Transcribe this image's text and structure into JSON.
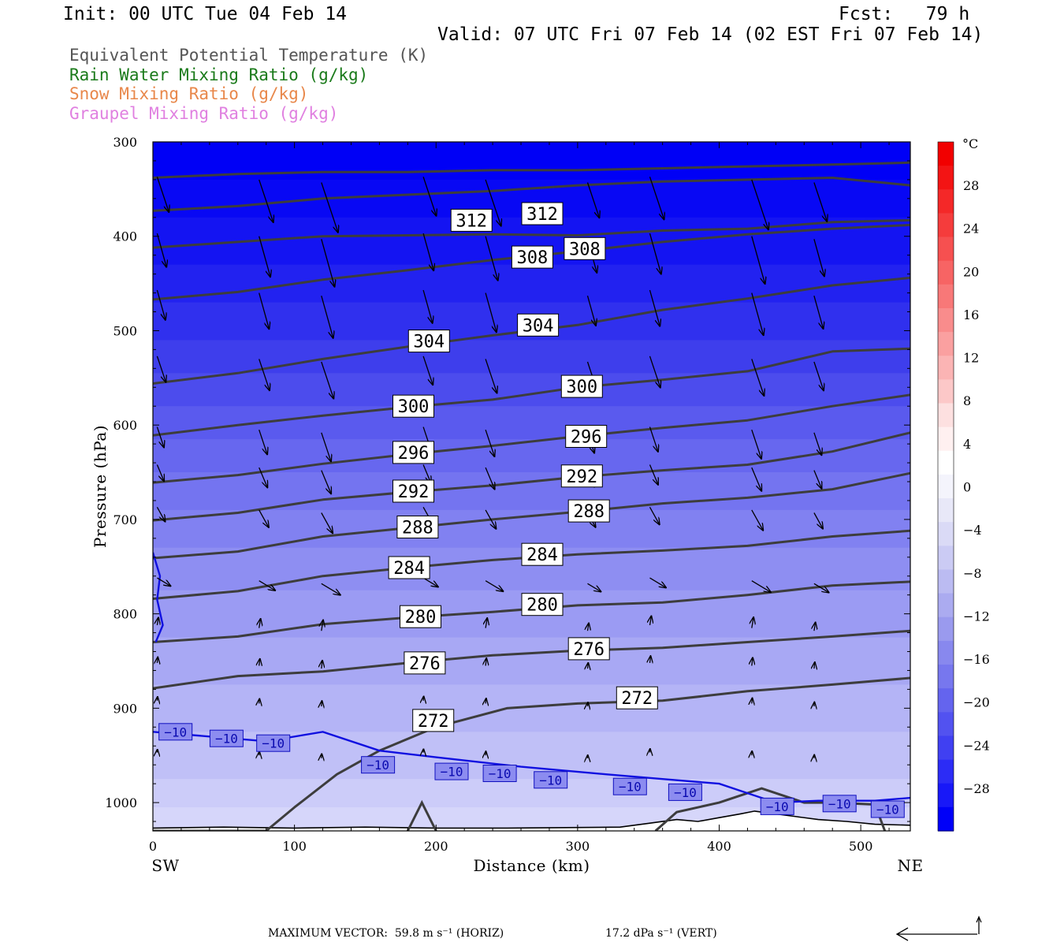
{
  "header": {
    "init": "Init: 00 UTC Tue 04 Feb 14",
    "fcst": "Fcst:   79 h",
    "valid": "Valid: 07 UTC Fri 07 Feb 14 (02 EST Fri 07 Feb 14)"
  },
  "legend": [
    {
      "label": "Equivalent Potential Temperature (K)",
      "color": "#555555"
    },
    {
      "label": "Rain Water Mixing Ratio (g/kg)",
      "color": "#1a7a1a"
    },
    {
      "label": "Snow Mixing Ratio (g/kg)",
      "color": "#e8874a"
    },
    {
      "label": "Graupel Mixing Ratio (g/kg)",
      "color": "#e080e0"
    }
  ],
  "chart_data": {
    "type": "contour",
    "xlabel": "Distance (km)",
    "ylabel": "Pressure (hPa)",
    "xlim": [
      0,
      535
    ],
    "ylim": [
      1030,
      300
    ],
    "x_ticks": [
      0,
      100,
      200,
      300,
      400,
      500
    ],
    "y_ticks": [
      300,
      400,
      500,
      600,
      700,
      800,
      900,
      1000
    ],
    "x_end_labels": {
      "left": "SW",
      "right": "NE"
    },
    "theta_e_contours": [
      {
        "value": 312,
        "labels": [
          [
            225,
            383
          ],
          [
            275,
            376
          ]
        ]
      },
      {
        "value": 308,
        "labels": [
          [
            268,
            422
          ],
          [
            305,
            413
          ]
        ]
      },
      {
        "value": 304,
        "labels": [
          [
            195,
            511
          ],
          [
            272,
            494
          ]
        ]
      },
      {
        "value": 300,
        "labels": [
          [
            184,
            580
          ],
          [
            303,
            559
          ]
        ]
      },
      {
        "value": 296,
        "labels": [
          [
            184,
            629
          ],
          [
            306,
            612
          ]
        ]
      },
      {
        "value": 292,
        "labels": [
          [
            184,
            670
          ],
          [
            303,
            654
          ]
        ]
      },
      {
        "value": 288,
        "labels": [
          [
            187,
            708
          ],
          [
            308,
            691
          ]
        ]
      },
      {
        "value": 284,
        "labels": [
          [
            181,
            751
          ],
          [
            275,
            737
          ]
        ]
      },
      {
        "value": 280,
        "labels": [
          [
            189,
            803
          ],
          [
            275,
            790
          ]
        ]
      },
      {
        "value": 276,
        "labels": [
          [
            192,
            852
          ],
          [
            308,
            837
          ]
        ]
      },
      {
        "value": 272,
        "labels": [
          [
            198,
            913
          ],
          [
            342,
            889
          ]
        ]
      }
    ],
    "temperature_contours": [
      {
        "value": -10,
        "labels": [
          [
            16,
            925
          ],
          [
            52,
            932
          ],
          [
            85,
            937
          ],
          [
            159,
            960
          ],
          [
            211,
            967
          ],
          [
            245,
            969
          ],
          [
            281,
            976
          ],
          [
            337,
            983
          ],
          [
            376,
            989
          ],
          [
            441,
            1004
          ],
          [
            485,
            1001
          ],
          [
            519,
            1007
          ]
        ]
      }
    ],
    "colorbar": {
      "unit": "°C",
      "tick_labels": [
        "28",
        "24",
        "20",
        "16",
        "12",
        "8",
        "4",
        "0",
        "−4",
        "−8",
        "−12",
        "−16",
        "−20",
        "−24",
        "−28"
      ],
      "colors": [
        "#0000f8",
        "#1818f8",
        "#2c2cf6",
        "#4040f2",
        "#5252f0",
        "#6464ee",
        "#7777ee",
        "#8888ee",
        "#9a9aee",
        "#ababf0",
        "#bbbbf2",
        "#cbcbf4",
        "#dadaf6",
        "#e8e8f8",
        "#f4f4fc",
        "#ffffff",
        "#fff0f0",
        "#fde0e0",
        "#fcc8c8",
        "#fbb4b4",
        "#faa0a0",
        "#f98c8c",
        "#f87878",
        "#f76464",
        "#f65050",
        "#f53c3c",
        "#f42828",
        "#f31414",
        "#f20000"
      ]
    }
  },
  "footer": {
    "max_vector": "MAXIMUM VECTOR:  59.8 m s⁻¹ (HORIZ)",
    "vert": "17.2 dPa s⁻¹ (VERT)"
  }
}
